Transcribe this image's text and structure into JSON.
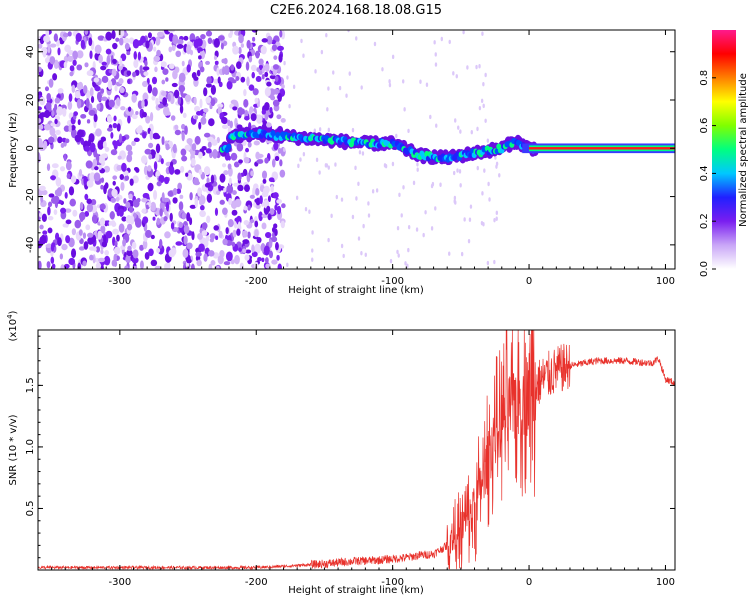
{
  "title": "C2E6.2024.168.18.08.G15",
  "chart_data": [
    {
      "type": "heatmap",
      "xlabel": "Height of straight line (km)",
      "ylabel": "Frequency (Hz)",
      "xlim": [
        -360,
        107
      ],
      "ylim": [
        -50,
        49
      ],
      "x_ticks": [
        -300,
        -200,
        -100,
        0,
        100
      ],
      "y_ticks": [
        -40,
        -20,
        0,
        20,
        40
      ],
      "colorbar": {
        "label": "Normalized spectral amplitude",
        "range": [
          0,
          1
        ],
        "ticks": [
          "0.0",
          "0.2",
          "0.4",
          "0.6",
          "0.8"
        ],
        "colors": [
          "#ffffff",
          "#c9a6f7",
          "#7a1ef0",
          "#2020ff",
          "#00c8ff",
          "#00ff80",
          "#80ff00",
          "#ffff00",
          "#ff8000",
          "#ff0000",
          "#ff1a8c"
        ]
      },
      "description_points": {
        "noise_region_x": [
          -360,
          -180
        ],
        "signal_track": {
          "x": [
            -220,
            -200,
            -180,
            -160,
            -140,
            -120,
            -100,
            -80,
            -60,
            -40,
            -20,
            -10,
            0,
            20,
            50,
            80,
            107
          ],
          "y": [
            5,
            6,
            5,
            4,
            3,
            2,
            2,
            -3,
            -4,
            -2,
            0,
            3,
            0,
            0,
            0,
            0,
            0
          ]
        }
      }
    },
    {
      "type": "line",
      "xlabel": "Height of straight line (km)",
      "ylabel": "SNR (10 * v/v)",
      "multiplier": "(x10",
      "multiplier_exp": "4",
      "multiplier_close": ")",
      "xlim": [
        -360,
        107
      ],
      "ylim": [
        0,
        1.95
      ],
      "x_ticks": [
        -300,
        -200,
        -100,
        0,
        100
      ],
      "y_ticks": [
        0.5,
        1.0,
        1.5
      ],
      "color": "#e8312b",
      "series": [
        {
          "x": [
            -360,
            -300,
            -250,
            -200,
            -180,
            -150,
            -130,
            -110,
            -90,
            -80,
            -70,
            -60,
            -50,
            -40,
            -35,
            -30,
            -25,
            -20,
            -15,
            -10,
            -5,
            0,
            5,
            10,
            20,
            30,
            40,
            50,
            60,
            70,
            80,
            90,
            95,
            100,
            107
          ],
          "y": [
            0.02,
            0.02,
            0.02,
            0.02,
            0.03,
            0.05,
            0.07,
            0.08,
            0.1,
            0.12,
            0.13,
            0.2,
            0.33,
            0.5,
            0.7,
            0.9,
            1.1,
            1.2,
            1.3,
            1.35,
            1.4,
            1.45,
            1.5,
            1.55,
            1.62,
            1.66,
            1.68,
            1.7,
            1.7,
            1.7,
            1.69,
            1.68,
            1.72,
            1.55,
            1.52
          ]
        }
      ]
    }
  ]
}
